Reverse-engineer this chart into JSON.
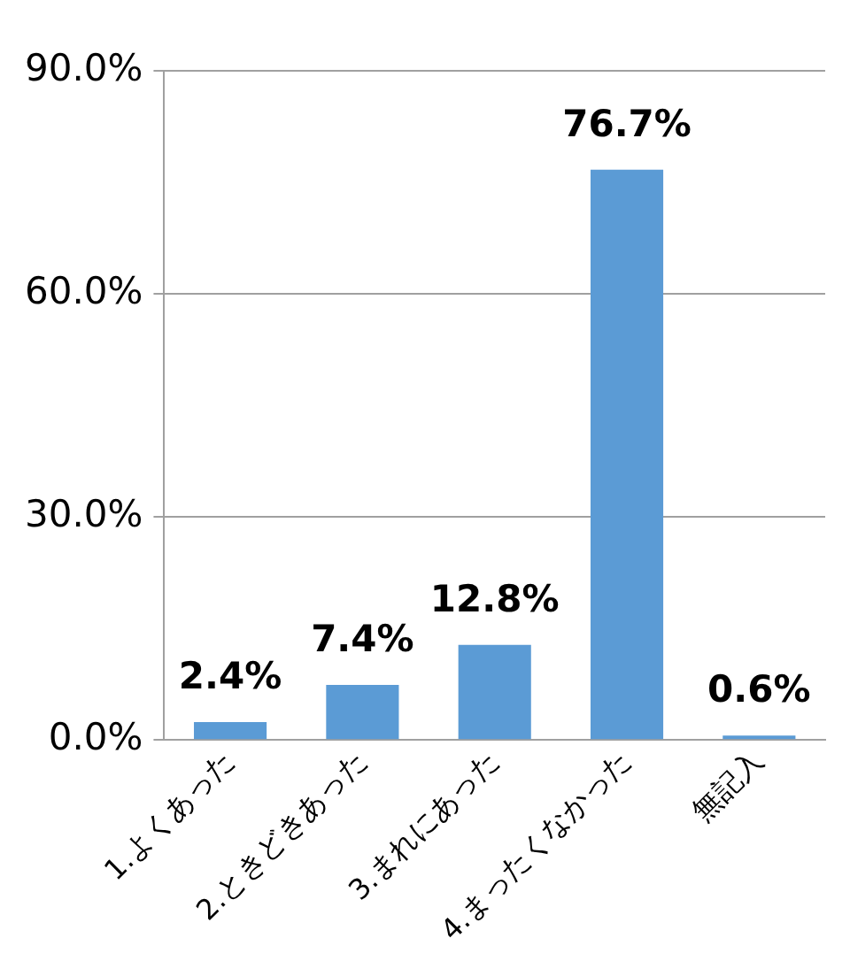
{
  "chart_data": {
    "type": "bar",
    "categories": [
      "1.よくあった",
      "2.ときどきあった",
      "3.まれにあった",
      "4.まったくなかった",
      "無記入"
    ],
    "values": [
      2.4,
      7.4,
      12.8,
      76.7,
      0.6
    ],
    "value_labels": [
      "2.4%",
      "7.4%",
      "12.8%",
      "76.7%",
      "0.6%"
    ],
    "color": "#5b9bd5",
    "ylim": [
      0,
      90
    ],
    "yticks": [
      {
        "value": 0,
        "label": "0.0%"
      },
      {
        "value": 30,
        "label": "30.0%"
      },
      {
        "value": 60,
        "label": "60.0%"
      },
      {
        "value": 90,
        "label": "90.0%"
      }
    ],
    "grid": "y",
    "legend": false
  }
}
